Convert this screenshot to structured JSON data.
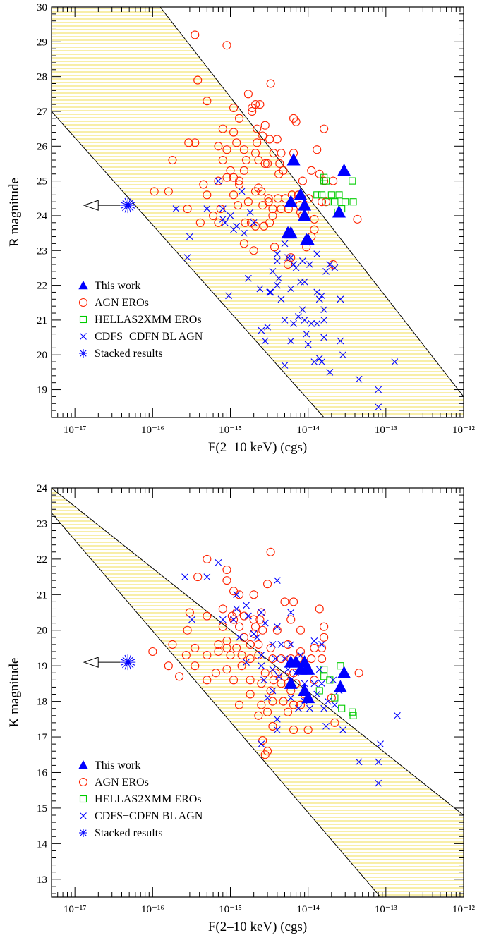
{
  "chart_data": [
    {
      "type": "scatter",
      "xlabel": "F(2–10 keV) (cgs)",
      "ylabel": "R magnitude",
      "x_scale": "log",
      "xlim": [
        5e-18,
        1e-12
      ],
      "ylim": [
        18.2,
        30
      ],
      "x_ticks": [
        1e-17,
        1e-16,
        1e-15,
        1e-14,
        1e-13,
        1e-12
      ],
      "x_tick_labels": [
        "10⁻¹⁷",
        "10⁻¹⁶",
        "10⁻¹⁵",
        "10⁻¹⁴",
        "10⁻¹³",
        "10⁻¹²"
      ],
      "y_ticks": [
        19,
        20,
        21,
        22,
        23,
        24,
        25,
        26,
        27,
        28,
        29,
        30
      ],
      "y_tick_labels": [
        "19",
        "20",
        "21",
        "22",
        "23",
        "24",
        "25",
        "26",
        "27",
        "28",
        "29",
        "30"
      ],
      "band": {
        "lower": [
          [
            5e-18,
            27.0
          ],
          [
            1.6e-14,
            18.2
          ]
        ],
        "upper": [
          [
            1.25e-16,
            30.0
          ],
          [
            1e-12,
            18.8
          ]
        ]
      },
      "legend_position": "bottom-left",
      "series": [
        {
          "name": "This work",
          "marker": "triangle",
          "color": "#0000ff",
          "x": [
            6.5e-15,
            2.9e-14,
            8e-15,
            6e-15,
            9e-15,
            2.5e-14,
            9e-15,
            5.5e-15,
            6e-15,
            1e-14,
            9.5e-15
          ],
          "y": [
            25.6,
            25.3,
            24.6,
            24.4,
            24.3,
            24.1,
            24.0,
            23.5,
            23.5,
            23.3,
            23.3
          ]
        },
        {
          "name": "AGN EROs",
          "marker": "circle",
          "color": "#ff2200",
          "x": [
            3.5e-16,
            9e-16,
            3.8e-16,
            3.3e-15,
            5e-16,
            2.1e-15,
            1.7e-15,
            2.4e-15,
            1.9e-15,
            1.1e-15,
            1.3e-15,
            1.9e-15,
            6.5e-15,
            7e-15,
            1.6e-14,
            2.8e-15,
            8e-16,
            1.1e-15,
            2.2e-15,
            2.6e-15,
            4e-15,
            3.5e-16,
            1.2e-15,
            2.2e-15,
            3.2e-15,
            2.9e-16,
            7e-16,
            9e-16,
            1.5e-15,
            2.1e-15,
            3.6e-15,
            4.5e-15,
            6.5e-15,
            1.3e-14,
            2.3e-15,
            3e-15,
            4.3e-15,
            1.8e-16,
            8e-16,
            1.6e-15,
            2.8e-15,
            4.8e-15,
            1.1e-14,
            2.1e-14,
            1.4e-14,
            1e-15,
            1.5e-15,
            4.2e-15,
            8.5e-15,
            1.6e-14,
            4.5e-16,
            7e-16,
            9e-16,
            1.3e-15,
            2.3e-15,
            5e-16,
            1.1e-15,
            2.1e-15,
            2.5e-15,
            3.1e-15,
            4.1e-15,
            5.1e-15,
            6.2e-15,
            7.5e-15,
            1.02e-14,
            1.5e-14,
            1.7e-14,
            1.05e-16,
            1.6e-16,
            2.8e-16,
            7.5e-16,
            1.25e-15,
            2.6e-15,
            3.1e-15,
            3.5e-15,
            4.5e-15,
            5.6e-15,
            7.8e-15,
            8.5e-15,
            1.2e-14,
            4.1e-16,
            7e-16,
            1.55e-15,
            1.85e-15,
            2.1e-15,
            2.7e-15,
            3.2e-15,
            1.2e-14,
            4.3e-14,
            1.5e-15,
            2e-15,
            3.7e-15,
            6e-15,
            9.5e-15,
            5.5e-15,
            2.1e-14,
            9e-15,
            1.1e-15,
            1.3e-15,
            1.7e-15,
            6e-16,
            3.5e-15,
            1.1e-14,
            8e-15
          ],
          "y": [
            29.2,
            28.9,
            27.9,
            27.8,
            27.3,
            27.2,
            27.5,
            27.2,
            27.0,
            27.1,
            26.8,
            27.1,
            26.8,
            26.7,
            26.5,
            26.6,
            26.5,
            26.4,
            26.5,
            26.3,
            26.2,
            26.1,
            26.1,
            26.1,
            26.2,
            26.1,
            26.0,
            25.9,
            25.9,
            25.8,
            25.8,
            25.8,
            25.8,
            25.9,
            25.6,
            25.5,
            25.5,
            25.6,
            25.6,
            25.6,
            25.5,
            25.3,
            25.3,
            25.0,
            25.2,
            25.3,
            25.3,
            25.2,
            25.0,
            25.0,
            24.9,
            25.0,
            25.1,
            24.9,
            24.8,
            24.6,
            24.6,
            24.7,
            24.7,
            24.5,
            24.5,
            24.5,
            24.6,
            24.6,
            24.5,
            24.4,
            24.4,
            24.7,
            24.7,
            24.2,
            24.2,
            24.3,
            24.3,
            24.4,
            24.2,
            24.2,
            24.2,
            24.3,
            24.0,
            23.9,
            23.8,
            23.8,
            23.8,
            23.8,
            23.7,
            23.7,
            23.8,
            23.6,
            23.9,
            23.2,
            23.0,
            23.1,
            22.8,
            23.1,
            22.6,
            22.6,
            24.1,
            25.1,
            25.0,
            24.4,
            24.0,
            24.0,
            23.4,
            24.1
          ]
        },
        {
          "name": "HELLAS2XMM EROs",
          "marker": "square",
          "color": "#00cc00",
          "x": [
            1.6e-14,
            1.7e-14,
            1.6e-14,
            1.3e-14,
            1.5e-14,
            2e-14,
            2.5e-14,
            3.7e-14,
            1.8e-14,
            2.2e-14,
            3e-14,
            3.8e-14,
            2.7e-14,
            2.4e-14
          ],
          "y": [
            25.1,
            25.0,
            25.0,
            24.6,
            24.6,
            24.6,
            24.6,
            25.0,
            24.4,
            24.4,
            24.4,
            24.4,
            24.2,
            24.1
          ]
        },
        {
          "name": "CDFS+CDFN BL AGN",
          "marker": "cross",
          "color": "#0000ff",
          "x": [
            7e-16,
            1.4e-15,
            5e-16,
            8e-16,
            1e-15,
            1.8e-15,
            3e-16,
            8.5e-16,
            2e-15,
            1.1e-15,
            1.5e-15,
            1.2e-15,
            2.8e-16,
            5e-15,
            6e-15,
            6.5e-15,
            1.3e-14,
            1.9e-14,
            5.5e-15,
            7e-15,
            1.05e-14,
            1.7e-14,
            2.2e-14,
            1.7e-15,
            3.5e-15,
            4e-15,
            4.2e-15,
            8e-15,
            9e-15,
            3.2e-15,
            6e-15,
            1.3e-14,
            1.5e-14,
            9.5e-16,
            2.4e-15,
            3.3e-15,
            4.5e-15,
            8.5e-15,
            1.4e-14,
            1.6e-14,
            2.6e-14,
            5e-15,
            6.5e-15,
            7.5e-15,
            9e-15,
            1.1e-14,
            1.3e-14,
            3e-15,
            1.6e-14,
            6e-15,
            1e-14,
            2.5e-15,
            1.6e-14,
            1.4e-14,
            1.2e-14,
            5e-15,
            2.8e-15,
            9.5e-15,
            2.6e-14,
            4e-15,
            1.5e-14,
            2.8e-14,
            1.9e-14,
            4.5e-14,
            1.3e-13,
            8e-14,
            8e-14,
            2e-16,
            8e-16,
            4e-15,
            8.5e-15
          ],
          "y": [
            25.0,
            24.7,
            24.2,
            24.2,
            24.0,
            24.1,
            23.4,
            23.8,
            23.8,
            23.6,
            23.5,
            23.7,
            22.8,
            23.2,
            22.8,
            22.6,
            22.9,
            22.6,
            22.8,
            22.5,
            22.6,
            22.4,
            22.5,
            22.2,
            22.4,
            22.0,
            22.2,
            22.1,
            22.1,
            21.8,
            21.9,
            21.8,
            21.7,
            21.7,
            21.9,
            21.8,
            21.6,
            21.3,
            21.6,
            21.3,
            21.6,
            21.0,
            20.9,
            21.1,
            21.0,
            20.9,
            20.9,
            20.8,
            21.0,
            20.4,
            20.3,
            20.7,
            20.5,
            19.9,
            19.8,
            19.7,
            20.4,
            20.6,
            20.4,
            22.7,
            19.8,
            20.0,
            19.5,
            19.3,
            19.8,
            19.0,
            18.5,
            24.2,
            23.9,
            22.9,
            22.7
          ]
        },
        {
          "name": "Stacked results",
          "marker": "star",
          "color": "#0000ff",
          "upper_limit_x": true,
          "x": [
            4.8e-17
          ],
          "y": [
            24.3
          ]
        }
      ]
    },
    {
      "type": "scatter",
      "xlabel": "F(2–10 keV) (cgs)",
      "ylabel": "K magnitude",
      "x_scale": "log",
      "xlim": [
        5e-18,
        1e-12
      ],
      "ylim": [
        12.5,
        24
      ],
      "x_ticks": [
        1e-17,
        1e-16,
        1e-15,
        1e-14,
        1e-13,
        1e-12
      ],
      "x_tick_labels": [
        "10⁻¹⁷",
        "10⁻¹⁶",
        "10⁻¹⁵",
        "10⁻¹⁴",
        "10⁻¹³",
        "10⁻¹²"
      ],
      "y_ticks": [
        13,
        14,
        15,
        16,
        17,
        18,
        19,
        20,
        21,
        22,
        23,
        24
      ],
      "y_tick_labels": [
        "13",
        "14",
        "15",
        "16",
        "17",
        "18",
        "19",
        "20",
        "21",
        "22",
        "23",
        "24"
      ],
      "band": {
        "lower": [
          [
            5e-18,
            23.3
          ],
          [
            8.5e-14,
            12.5
          ]
        ],
        "upper": [
          [
            5e-18,
            24.0
          ],
          [
            1e-12,
            14.8
          ]
        ]
      },
      "legend_position": "bottom-left",
      "series": [
        {
          "name": "This work",
          "marker": "triangle",
          "color": "#0000ff",
          "x": [
            6e-15,
            7e-15,
            9e-15,
            8e-15,
            9.5e-15,
            1e-14,
            2.9e-14,
            2.6e-14,
            6e-15,
            9e-15,
            1e-14
          ],
          "y": [
            19.1,
            19.1,
            19.1,
            18.9,
            18.9,
            18.9,
            18.8,
            18.4,
            18.5,
            18.3,
            18.1
          ]
        },
        {
          "name": "AGN EROs",
          "marker": "circle",
          "color": "#ff2200",
          "x": [
            3.3e-15,
            5e-16,
            9e-16,
            3.8e-16,
            9e-16,
            3e-15,
            1.1e-15,
            1.3e-15,
            2e-15,
            5e-15,
            6.5e-15,
            8e-16,
            1.2e-15,
            1.5e-15,
            2.5e-15,
            3e-16,
            5e-16,
            1.05e-15,
            2e-15,
            2.4e-15,
            6e-15,
            1.4e-14,
            1.6e-14,
            2.8e-16,
            8e-16,
            1.3e-15,
            2.1e-15,
            2.6e-15,
            4e-15,
            8e-15,
            2e-15,
            1.5e-15,
            1.6e-14,
            1.8e-16,
            3.5e-16,
            7e-16,
            9e-16,
            1.2e-15,
            1.8e-15,
            2.3e-15,
            3.3e-15,
            5.5e-15,
            8e-15,
            1.2e-14,
            1.5e-14,
            1e-16,
            2.7e-16,
            5e-16,
            1e-15,
            1.8e-15,
            2.3e-15,
            3.5e-15,
            4.5e-15,
            6e-15,
            7.5e-15,
            1.1e-14,
            1.5e-14,
            1.6e-16,
            3.5e-16,
            6.5e-16,
            9e-16,
            1.4e-15,
            2.8e-15,
            3.8e-15,
            5e-15,
            6.5e-15,
            1.2e-14,
            2.2e-16,
            5e-16,
            1.1e-15,
            1.8e-15,
            2.5e-15,
            3.6e-15,
            4.5e-15,
            5.5e-15,
            7e-15,
            1.8e-15,
            3.3e-15,
            6e-15,
            9e-15,
            2e-14,
            1.3e-15,
            2.5e-15,
            3.5e-15,
            4.8e-15,
            6.5e-15,
            2.3e-15,
            3e-15,
            5.5e-15,
            8e-15,
            2.2e-14,
            3.5e-15,
            6.5e-15,
            1e-14,
            2.6e-15,
            2.8e-15,
            3e-15,
            4.5e-14,
            7e-16,
            9e-16,
            1.1e-15,
            1.4e-15
          ],
          "y": [
            22.2,
            22.0,
            21.7,
            21.5,
            21.4,
            21.3,
            21.1,
            21.0,
            21.0,
            20.8,
            20.8,
            20.6,
            20.5,
            20.4,
            20.5,
            20.5,
            20.4,
            20.4,
            20.3,
            20.3,
            20.3,
            20.6,
            20.1,
            20.0,
            20.1,
            20.1,
            20.1,
            20.0,
            20.0,
            20.0,
            19.9,
            19.8,
            19.8,
            19.6,
            19.5,
            19.6,
            19.5,
            19.5,
            19.6,
            19.6,
            19.5,
            19.6,
            19.4,
            19.5,
            19.5,
            19.4,
            19.3,
            19.3,
            19.3,
            19.2,
            19.3,
            19.2,
            19.2,
            19.2,
            19.2,
            19.2,
            19.2,
            19.0,
            19.0,
            18.8,
            18.9,
            19.0,
            18.8,
            18.8,
            18.7,
            18.8,
            18.6,
            18.7,
            18.6,
            18.6,
            18.6,
            18.5,
            18.6,
            18.5,
            18.5,
            18.5,
            18.2,
            18.3,
            18.3,
            18.2,
            18.1,
            17.9,
            17.9,
            18.0,
            18.0,
            17.9,
            17.6,
            17.7,
            17.7,
            17.9,
            17.4,
            17.3,
            17.2,
            17.2,
            16.9,
            16.5,
            16.6,
            18.8,
            19.4,
            19.7,
            20.3,
            19.3
          ]
        },
        {
          "name": "HELLAS2XMM EROs",
          "marker": "square",
          "color": "#00cc00",
          "x": [
            1.6e-14,
            2.6e-14,
            1.6e-14,
            1.9e-14,
            1.4e-14,
            2.2e-14,
            2.7e-14,
            3.7e-14,
            3.8e-14
          ],
          "y": [
            18.9,
            19.0,
            18.7,
            18.6,
            18.3,
            18.1,
            17.8,
            17.7,
            17.6
          ]
        },
        {
          "name": "CDFS+CDFN BL AGN",
          "marker": "cross",
          "color": "#0000ff",
          "x": [
            7e-16,
            4e-15,
            2.6e-16,
            5e-16,
            1.2e-15,
            1.6e-15,
            1.2e-15,
            3.2e-16,
            1.1e-15,
            1.7e-15,
            2.5e-15,
            6e-15,
            8e-16,
            1.1e-15,
            1.3e-15,
            2e-15,
            2.8e-15,
            4e-15,
            1.2e-14,
            2.2e-15,
            3.5e-15,
            4.5e-15,
            6e-15,
            1.5e-14,
            1.6e-15,
            2.5e-15,
            3.8e-15,
            5e-15,
            8e-15,
            2.5e-15,
            3.5e-15,
            5.5e-15,
            7e-15,
            1.4e-14,
            2.7e-15,
            4.2e-15,
            6e-15,
            9e-15,
            1.2e-14,
            1.5e-14,
            2.1e-14,
            3.5e-15,
            6e-15,
            9e-15,
            1.3e-14,
            1.8e-14,
            7.5e-15,
            1.05e-14,
            1.6e-14,
            2.2e-14,
            4e-15,
            1.7e-14,
            2.8e-14,
            2.5e-15,
            1.4e-13,
            8.5e-14,
            4.5e-14,
            8e-14,
            8e-14,
            3e-15,
            4e-15,
            2.5e-14
          ],
          "y": [
            21.9,
            21.4,
            21.5,
            21.5,
            21.0,
            20.7,
            20.6,
            20.3,
            20.3,
            20.4,
            20.5,
            20.5,
            20.3,
            20.3,
            19.8,
            19.9,
            20.2,
            20.1,
            19.7,
            19.8,
            19.6,
            19.6,
            19.6,
            19.6,
            19.1,
            19.3,
            19.2,
            19.2,
            19.3,
            19.0,
            18.9,
            18.9,
            18.8,
            18.9,
            18.6,
            18.7,
            18.6,
            18.5,
            18.5,
            18.5,
            18.6,
            18.3,
            18.1,
            18.0,
            18.2,
            18.0,
            17.8,
            17.8,
            17.8,
            17.9,
            17.5,
            17.3,
            17.2,
            16.8,
            17.6,
            16.8,
            16.3,
            16.3,
            15.7,
            18.1,
            17.2,
            18.3
          ]
        },
        {
          "name": "Stacked results",
          "marker": "star",
          "color": "#0000ff",
          "upper_limit_x": true,
          "x": [
            4.8e-17
          ],
          "y": [
            19.1
          ]
        }
      ]
    }
  ]
}
